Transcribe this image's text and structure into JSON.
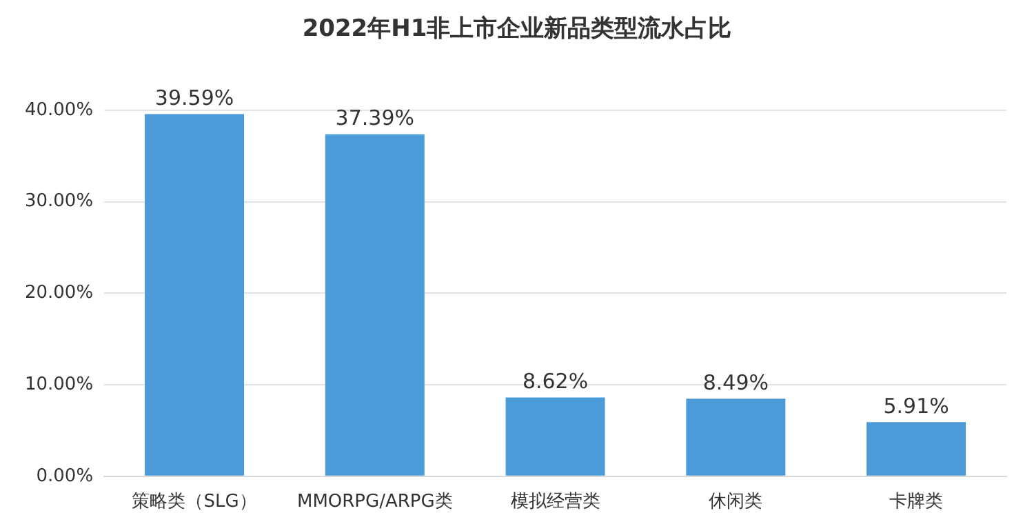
{
  "chart_data": {
    "type": "bar",
    "title": "2022年H1非上市企业新品类型流水占比",
    "categories": [
      "策略类（SLG）",
      "MMORPG/ARPG类",
      "模拟经营类",
      "休闲类",
      "卡牌类"
    ],
    "values": [
      39.59,
      37.39,
      8.62,
      8.49,
      5.91
    ],
    "value_labels": [
      "39.59%",
      "37.39%",
      "8.62%",
      "8.49%",
      "5.91%"
    ],
    "color": "#4a9bd8",
    "ylim": [
      0,
      40
    ],
    "yticks": [
      {
        "value": 0,
        "label": "0.00%"
      },
      {
        "value": 10,
        "label": "10.00%"
      },
      {
        "value": 20,
        "label": "20.00%"
      },
      {
        "value": 30,
        "label": "30.00%"
      },
      {
        "value": 40,
        "label": "40.00%"
      }
    ],
    "grid": "y"
  }
}
